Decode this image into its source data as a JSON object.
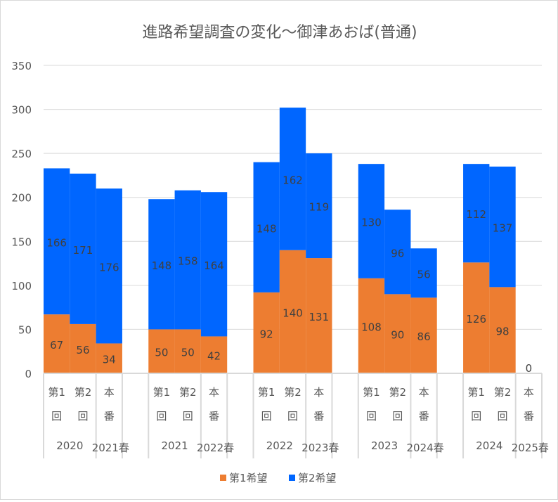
{
  "chart_data": {
    "type": "bar",
    "stacked": true,
    "title": "進路希望調査の変化～御津あおば(普通)",
    "ylim": [
      0,
      350
    ],
    "yticks": [
      "0",
      "50",
      "100",
      "150",
      "200",
      "250",
      "300",
      "350"
    ],
    "grid": true,
    "legend_position": "bottom",
    "groups": [
      {
        "year": "2020",
        "final": "2021春"
      },
      {
        "year": "2021",
        "final": "2022春"
      },
      {
        "year": "2022",
        "final": "2023春"
      },
      {
        "year": "2023",
        "final": "2024春"
      },
      {
        "year": "2024",
        "final": "2025春"
      }
    ],
    "subcategories": [
      {
        "top": "第1",
        "bottom": "回"
      },
      {
        "top": "第2",
        "bottom": "回"
      },
      {
        "top": "本",
        "bottom": "番"
      }
    ],
    "series": [
      {
        "name": "第1希望",
        "color": "#ED7D31",
        "values": [
          [
            67,
            56,
            34
          ],
          [
            50,
            50,
            42
          ],
          [
            92,
            140,
            131
          ],
          [
            108,
            90,
            86
          ],
          [
            126,
            98,
            0
          ]
        ]
      },
      {
        "name": "第2希望",
        "color": "#0066FF",
        "values": [
          [
            166,
            171,
            176
          ],
          [
            148,
            158,
            164
          ],
          [
            148,
            162,
            119
          ],
          [
            130,
            96,
            56
          ],
          [
            112,
            137,
            null
          ]
        ]
      }
    ]
  }
}
